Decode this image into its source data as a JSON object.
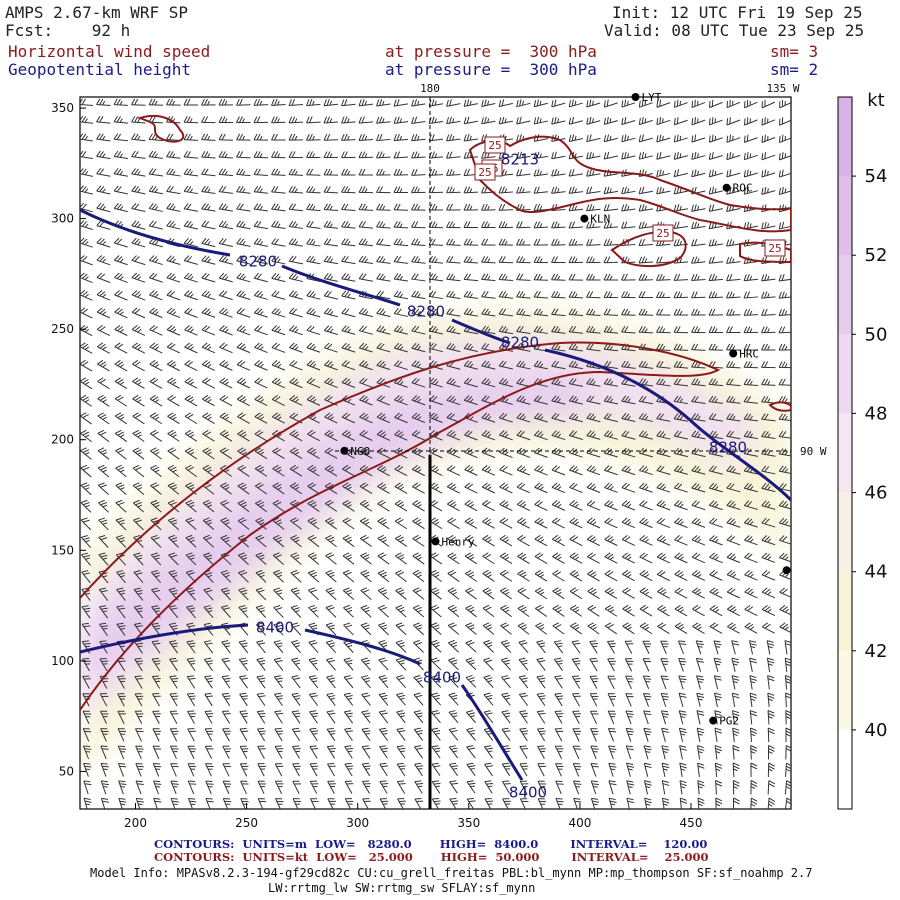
{
  "header": {
    "model": "AMPS 2.67-km WRF SP",
    "fcst": "Fcst:    92 h",
    "init": "Init: 12 UTC Fri 19 Sep 25",
    "valid": "Valid: 08 UTC Tue 23 Sep 25",
    "field1_name": "Horizontal wind speed",
    "field1_level": "at pressure =  300 hPa",
    "field1_sm": "sm= 3",
    "field2_name": "Geopotential height",
    "field2_level": "at pressure =  300 hPa",
    "field2_sm": "sm= 2"
  },
  "map": {
    "lon_labels": [
      "180",
      "135 W",
      "90 W"
    ],
    "x_ticks": [
      200,
      250,
      300,
      350,
      400,
      450
    ],
    "y_ticks": [
      50,
      100,
      150,
      200,
      250,
      300,
      350
    ],
    "x_range": [
      175,
      495
    ],
    "y_range": [
      33,
      355
    ],
    "stations": [
      {
        "name": "LYT",
        "x": 425,
        "y": 355
      },
      {
        "name": "ROC",
        "x": 466,
        "y": 314
      },
      {
        "name": "KLN",
        "x": 402,
        "y": 300
      },
      {
        "name": "HRC",
        "x": 469,
        "y": 239
      },
      {
        "name": "NGO",
        "x": 294,
        "y": 195
      },
      {
        "name": "Henry",
        "x": 335,
        "y": 154
      },
      {
        "name": "PG2",
        "x": 460,
        "y": 73
      },
      {
        "name": "",
        "x": 493,
        "y": 141
      }
    ],
    "height_labels": [
      "8213",
      "8280",
      "8280",
      "8280",
      "8280",
      "8400",
      "8400",
      "8400"
    ],
    "speed_labels": [
      "25",
      "25",
      "25",
      "25",
      "25"
    ]
  },
  "colorbar": {
    "unit": "kt",
    "labels": [
      "54",
      "52",
      "50",
      "48",
      "46",
      "44",
      "42",
      "40"
    ],
    "colors": [
      "#d9b3e6",
      "#dfbfea",
      "#e6cdee",
      "#eddaf0",
      "#f3e7f1",
      "#f6f0e6",
      "#f8f4d8",
      "#fbf8e6"
    ]
  },
  "footer": {
    "contours1": "CONTOURS:  UNITS=m  LOW=   8280.0       HIGH=  8400.0        INTERVAL=    120.00",
    "contours2": "CONTOURS:  UNITS=kt  LOW=   25.000       HIGH=  50.000        INTERVAL=    25.000",
    "model_info": "Model Info: MPASv8.2.3-194-gf29cd82c CU:cu_grell_freitas PBL:bl_mynn MP:mp_thompson SF:sf_noahmp 2.7",
    "model_info2": "LW:rrtmg_lw SW:rrtmg_sw SFLAY:sf_mynn"
  }
}
